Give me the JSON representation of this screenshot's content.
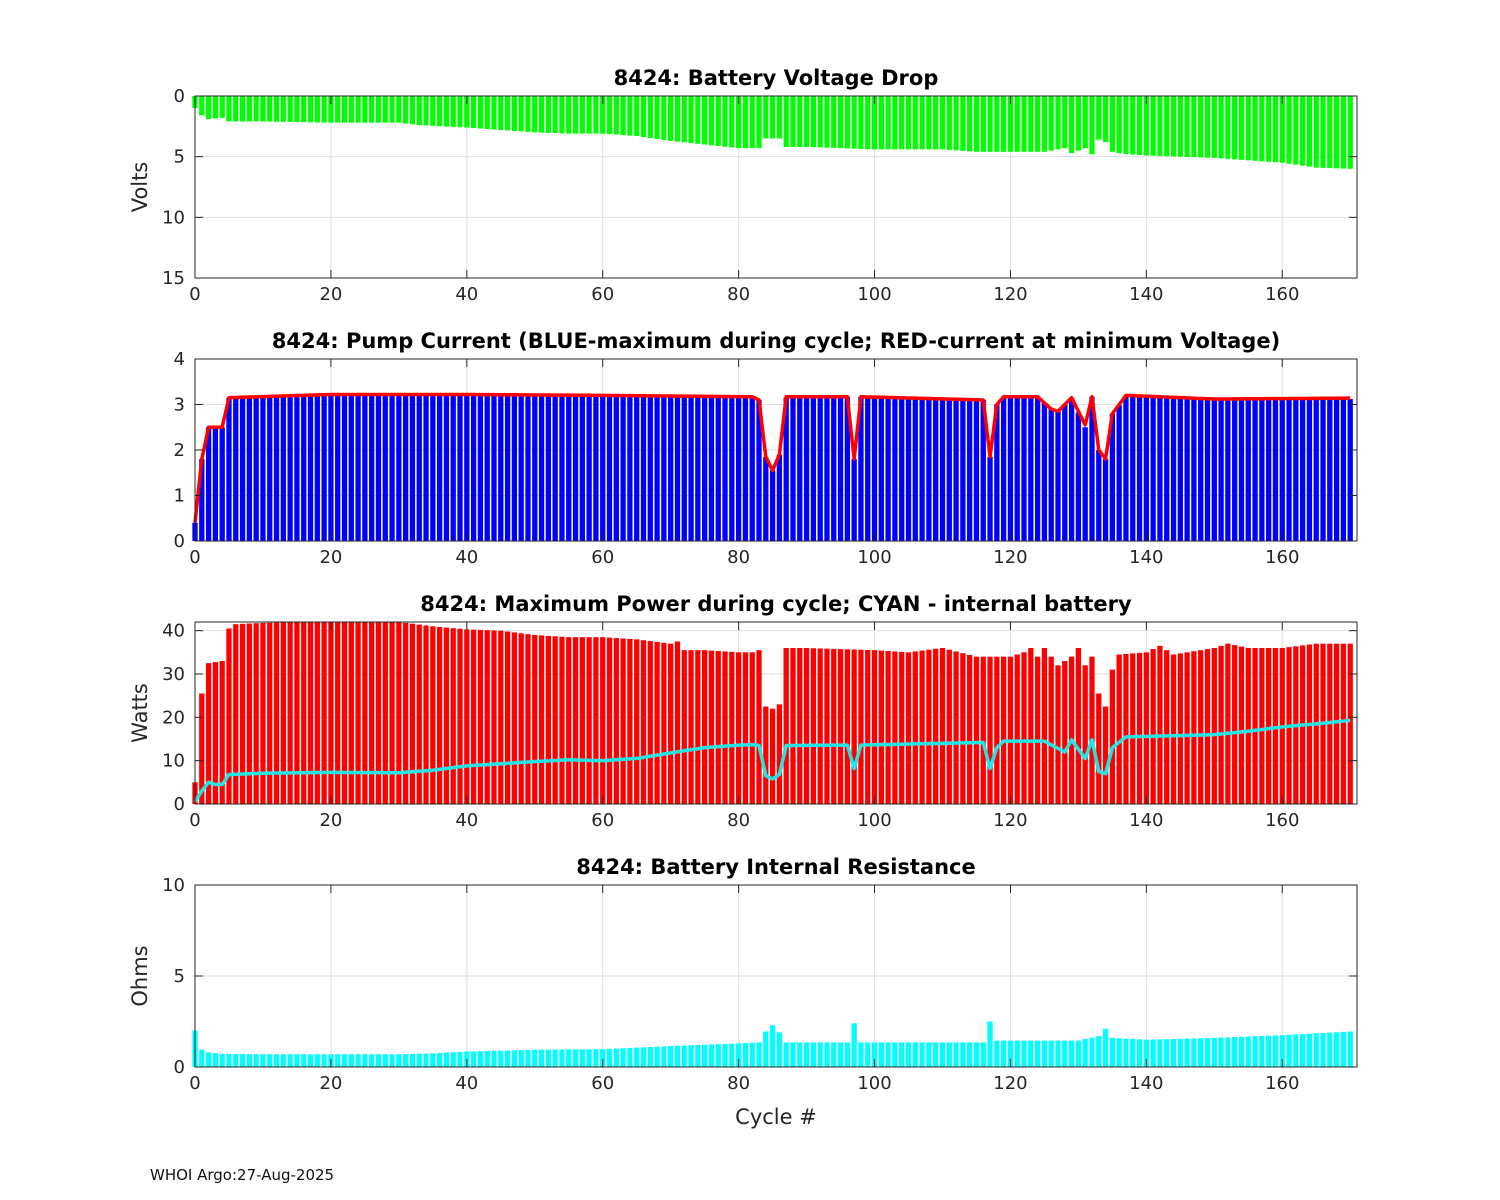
{
  "footer": {
    "text": "WHOI Argo:27-Aug-2025"
  },
  "colors": {
    "green": "#00ff00",
    "blue": "#0000ff",
    "red": "#ff0000",
    "cyan": "#00ffff",
    "line_red": "#ff0000",
    "line_cyan": "#22e6e6"
  },
  "chart_data": [
    {
      "type": "bar",
      "title": "8424: Battery Voltage Drop",
      "xlabel": "",
      "ylabel": "Volts",
      "xlim": [
        0,
        171
      ],
      "ylim": [
        0,
        15
      ],
      "y_reversed": true,
      "xticks": [
        0,
        20,
        40,
        60,
        80,
        100,
        120,
        140,
        160
      ],
      "yticks": [
        0,
        5,
        10,
        15
      ],
      "grid": true,
      "bar_color": "#00ff00",
      "series": [
        {
          "name": "Voltage Drop",
          "anchors": [
            [
              0,
              1.0
            ],
            [
              1,
              1.6
            ],
            [
              2,
              1.9
            ],
            [
              4,
              1.8
            ],
            [
              5,
              2.1
            ],
            [
              10,
              2.1
            ],
            [
              20,
              2.2
            ],
            [
              30,
              2.2
            ],
            [
              33,
              2.4
            ],
            [
              40,
              2.6
            ],
            [
              45,
              2.8
            ],
            [
              50,
              3.0
            ],
            [
              55,
              3.1
            ],
            [
              60,
              3.1
            ],
            [
              65,
              3.3
            ],
            [
              70,
              3.7
            ],
            [
              75,
              4.0
            ],
            [
              80,
              4.3
            ],
            [
              83,
              4.3
            ],
            [
              84,
              3.5
            ],
            [
              86,
              3.5
            ],
            [
              87,
              4.2
            ],
            [
              90,
              4.2
            ],
            [
              100,
              4.4
            ],
            [
              110,
              4.4
            ],
            [
              115,
              4.6
            ],
            [
              120,
              4.6
            ],
            [
              125,
              4.6
            ],
            [
              128,
              4.3
            ],
            [
              129,
              4.7
            ],
            [
              130,
              4.5
            ],
            [
              131,
              4.3
            ],
            [
              132,
              4.8
            ],
            [
              133,
              3.6
            ],
            [
              134,
              3.8
            ],
            [
              135,
              4.6
            ],
            [
              137,
              4.8
            ],
            [
              140,
              4.9
            ],
            [
              150,
              5.1
            ],
            [
              155,
              5.3
            ],
            [
              160,
              5.5
            ],
            [
              165,
              5.9
            ],
            [
              170,
              6.0
            ]
          ]
        }
      ]
    },
    {
      "type": "bar",
      "title": "8424: Pump Current (BLUE-maximum during cycle; RED-current at minimum Voltage)",
      "xlabel": "",
      "ylabel": "",
      "xlim": [
        0,
        171
      ],
      "ylim": [
        0,
        4
      ],
      "xticks": [
        0,
        20,
        40,
        60,
        80,
        100,
        120,
        140,
        160
      ],
      "yticks": [
        0,
        1,
        2,
        3,
        4
      ],
      "grid": true,
      "bar_color": "#0000ff",
      "series": [
        {
          "name": "Maximum current (BLUE)",
          "anchors": [
            [
              0,
              0.4
            ],
            [
              1,
              1.8
            ],
            [
              2,
              2.5
            ],
            [
              4,
              2.5
            ],
            [
              5,
              3.15
            ],
            [
              20,
              3.2
            ],
            [
              40,
              3.2
            ],
            [
              60,
              3.2
            ],
            [
              82,
              3.17
            ],
            [
              83,
              3.1
            ],
            [
              84,
              1.85
            ],
            [
              85,
              1.55
            ],
            [
              86,
              1.9
            ],
            [
              87,
              3.15
            ],
            [
              96,
              3.17
            ],
            [
              97,
              1.8
            ],
            [
              98,
              3.17
            ],
            [
              116,
              3.1
            ],
            [
              117,
              1.85
            ],
            [
              118,
              3.0
            ],
            [
              119,
              3.17
            ],
            [
              124,
              3.17
            ],
            [
              126,
              2.9
            ],
            [
              127,
              2.85
            ],
            [
              129,
              3.15
            ],
            [
              131,
              2.5
            ],
            [
              132,
              3.17
            ],
            [
              133,
              2.0
            ],
            [
              134,
              1.8
            ],
            [
              135,
              2.8
            ],
            [
              137,
              3.17
            ],
            [
              150,
              3.1
            ],
            [
              170,
              3.12
            ]
          ]
        },
        {
          "name": "Current at minimum voltage (RED)",
          "type": "line",
          "anchors": [
            [
              0,
              0.4
            ],
            [
              1,
              1.8
            ],
            [
              2,
              2.5
            ],
            [
              4,
              2.5
            ],
            [
              5,
              3.15
            ],
            [
              20,
              3.22
            ],
            [
              40,
              3.22
            ],
            [
              60,
              3.2
            ],
            [
              82,
              3.17
            ],
            [
              83,
              3.1
            ],
            [
              84,
              1.85
            ],
            [
              85,
              1.55
            ],
            [
              86,
              1.9
            ],
            [
              87,
              3.17
            ],
            [
              96,
              3.17
            ],
            [
              97,
              1.8
            ],
            [
              98,
              3.17
            ],
            [
              116,
              3.1
            ],
            [
              117,
              1.85
            ],
            [
              118,
              3.0
            ],
            [
              119,
              3.17
            ],
            [
              124,
              3.17
            ],
            [
              126,
              2.9
            ],
            [
              127,
              2.85
            ],
            [
              129,
              3.15
            ],
            [
              131,
              2.55
            ],
            [
              132,
              3.17
            ],
            [
              133,
              2.0
            ],
            [
              134,
              1.8
            ],
            [
              135,
              2.8
            ],
            [
              137,
              3.2
            ],
            [
              150,
              3.12
            ],
            [
              170,
              3.14
            ]
          ]
        }
      ]
    },
    {
      "type": "bar",
      "title": "8424: Maximum Power during cycle; CYAN - internal battery",
      "xlabel": "",
      "ylabel": "Watts",
      "xlim": [
        0,
        171
      ],
      "ylim": [
        0,
        42
      ],
      "xticks": [
        0,
        20,
        40,
        60,
        80,
        100,
        120,
        140,
        160
      ],
      "yticks": [
        0,
        10,
        20,
        30,
        40
      ],
      "grid": true,
      "bar_color": "#ff0000",
      "series": [
        {
          "name": "Maximum Power (RED)",
          "anchors": [
            [
              0,
              5
            ],
            [
              1,
              25.5
            ],
            [
              2,
              32.5
            ],
            [
              4,
              33
            ],
            [
              5,
              40.5
            ],
            [
              6,
              41.5
            ],
            [
              10,
              41.8
            ],
            [
              15,
              42
            ],
            [
              20,
              42
            ],
            [
              30,
              42
            ],
            [
              35,
              41
            ],
            [
              40,
              40.3
            ],
            [
              45,
              40
            ],
            [
              50,
              39
            ],
            [
              55,
              38.5
            ],
            [
              60,
              38.5
            ],
            [
              65,
              38
            ],
            [
              70,
              37
            ],
            [
              71,
              37.5
            ],
            [
              72,
              35.5
            ],
            [
              75,
              35.5
            ],
            [
              80,
              35
            ],
            [
              82,
              35
            ],
            [
              83,
              35.5
            ],
            [
              84,
              22.5
            ],
            [
              85,
              22
            ],
            [
              86,
              23
            ],
            [
              87,
              36
            ],
            [
              90,
              36
            ],
            [
              100,
              35.5
            ],
            [
              105,
              35
            ],
            [
              110,
              36
            ],
            [
              115,
              34
            ],
            [
              120,
              34
            ],
            [
              122,
              35
            ],
            [
              123,
              36
            ],
            [
              124,
              34
            ],
            [
              125,
              36
            ],
            [
              126,
              34
            ],
            [
              127,
              32
            ],
            [
              128,
              33
            ],
            [
              129,
              34
            ],
            [
              130,
              36
            ],
            [
              131,
              32
            ],
            [
              132,
              34
            ],
            [
              133,
              25.5
            ],
            [
              134,
              22.5
            ],
            [
              135,
              31
            ],
            [
              136,
              34.5
            ],
            [
              140,
              35
            ],
            [
              142,
              36.5
            ],
            [
              144,
              34.5
            ],
            [
              150,
              36
            ],
            [
              152,
              37
            ],
            [
              155,
              36
            ],
            [
              160,
              36
            ],
            [
              165,
              37
            ],
            [
              170,
              37
            ]
          ]
        },
        {
          "name": "Internal battery (CYAN)",
          "type": "line",
          "anchors": [
            [
              0,
              0.5
            ],
            [
              1,
              3
            ],
            [
              2,
              5
            ],
            [
              3,
              4.5
            ],
            [
              4,
              4.5
            ],
            [
              5,
              6.8
            ],
            [
              10,
              7.1
            ],
            [
              20,
              7.3
            ],
            [
              30,
              7.2
            ],
            [
              35,
              7.8
            ],
            [
              40,
              8.8
            ],
            [
              50,
              9.8
            ],
            [
              55,
              10.2
            ],
            [
              60,
              10
            ],
            [
              65,
              10.5
            ],
            [
              70,
              11.8
            ],
            [
              75,
              13
            ],
            [
              80,
              13.6
            ],
            [
              82,
              13.7
            ],
            [
              83,
              13.5
            ],
            [
              84,
              6.5
            ],
            [
              85,
              5.8
            ],
            [
              86,
              6.8
            ],
            [
              87,
              13.5
            ],
            [
              96,
              13.6
            ],
            [
              97,
              8.2
            ],
            [
              98,
              13.6
            ],
            [
              116,
              14.2
            ],
            [
              117,
              8.2
            ],
            [
              118,
              13
            ],
            [
              119,
              14.5
            ],
            [
              125,
              14.5
            ],
            [
              128,
              12
            ],
            [
              129,
              14.8
            ],
            [
              131,
              10.5
            ],
            [
              132,
              14.8
            ],
            [
              133,
              7.5
            ],
            [
              134,
              7
            ],
            [
              135,
              13
            ],
            [
              137,
              15.5
            ],
            [
              140,
              15.6
            ],
            [
              150,
              16
            ],
            [
              155,
              16.8
            ],
            [
              160,
              17.8
            ],
            [
              165,
              18.5
            ],
            [
              170,
              19.3
            ]
          ]
        }
      ]
    },
    {
      "type": "bar",
      "title": "8424: Battery Internal Resistance",
      "xlabel": "Cycle #",
      "ylabel": "Ohms",
      "xlim": [
        0,
        171
      ],
      "ylim": [
        0,
        10
      ],
      "xticks": [
        0,
        20,
        40,
        60,
        80,
        100,
        120,
        140,
        160
      ],
      "yticks": [
        0,
        5,
        10
      ],
      "grid": true,
      "bar_color": "#00ffff",
      "series": [
        {
          "name": "Internal Resistance",
          "anchors": [
            [
              0,
              2.0
            ],
            [
              1,
              0.95
            ],
            [
              2,
              0.8
            ],
            [
              4,
              0.72
            ],
            [
              10,
              0.7
            ],
            [
              20,
              0.7
            ],
            [
              30,
              0.7
            ],
            [
              35,
              0.75
            ],
            [
              40,
              0.85
            ],
            [
              50,
              0.95
            ],
            [
              60,
              0.98
            ],
            [
              70,
              1.15
            ],
            [
              80,
              1.3
            ],
            [
              83,
              1.35
            ],
            [
              84,
              1.95
            ],
            [
              85,
              2.3
            ],
            [
              86,
              1.9
            ],
            [
              87,
              1.35
            ],
            [
              96,
              1.35
            ],
            [
              97,
              2.4
            ],
            [
              98,
              1.35
            ],
            [
              116,
              1.35
            ],
            [
              117,
              2.5
            ],
            [
              118,
              1.45
            ],
            [
              130,
              1.45
            ],
            [
              133,
              1.7
            ],
            [
              134,
              2.1
            ],
            [
              135,
              1.6
            ],
            [
              140,
              1.5
            ],
            [
              150,
              1.6
            ],
            [
              160,
              1.75
            ],
            [
              170,
              1.95
            ]
          ]
        }
      ]
    }
  ]
}
